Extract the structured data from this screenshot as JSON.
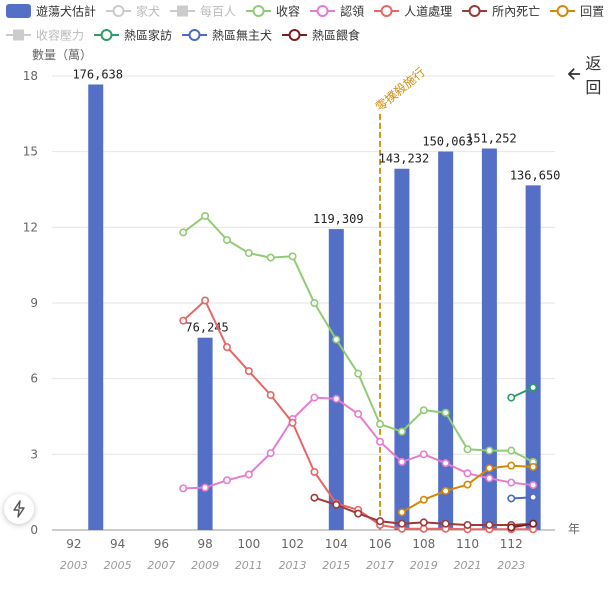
{
  "back_button": {
    "label": "返回",
    "icon": "arrow-left-icon"
  },
  "fab": {
    "icon": "lightning-icon"
  },
  "chart_data": {
    "type": "bar+line",
    "ylabel": "數量（萬）",
    "xlabel": "年",
    "ylim": [
      0,
      18
    ],
    "yticks": [
      0,
      3,
      6,
      9,
      12,
      15,
      18
    ],
    "xlim": [
      91,
      114
    ],
    "xticks": [
      {
        "x": 92,
        "label": "92",
        "sub": "2003"
      },
      {
        "x": 94,
        "label": "94",
        "sub": "2005"
      },
      {
        "x": 96,
        "label": "96",
        "sub": "2007"
      },
      {
        "x": 98,
        "label": "98",
        "sub": "2009"
      },
      {
        "x": 100,
        "label": "100",
        "sub": "2011"
      },
      {
        "x": 102,
        "label": "102",
        "sub": "2013"
      },
      {
        "x": 104,
        "label": "104",
        "sub": "2015"
      },
      {
        "x": 106,
        "label": "106",
        "sub": "2017"
      },
      {
        "x": 108,
        "label": "108",
        "sub": "2019"
      },
      {
        "x": 110,
        "label": "110",
        "sub": "2021"
      },
      {
        "x": 112,
        "label": "112",
        "sub": "2023"
      }
    ],
    "markline": {
      "x": 106,
      "label": "零撲殺施行",
      "color": "#d48806"
    },
    "bars": {
      "name": "遊蕩犬估計",
      "color": "#5470c6",
      "points": [
        {
          "x": 93,
          "y": 17.6638,
          "label": "176,638"
        },
        {
          "x": 98,
          "y": 7.6245,
          "label": "76,245"
        },
        {
          "x": 104,
          "y": 11.9309,
          "label": "119,309"
        },
        {
          "x": 107,
          "y": 14.3232,
          "label": "143,232"
        },
        {
          "x": 109,
          "y": 15.0063,
          "label": "150,063"
        },
        {
          "x": 111,
          "y": 15.1252,
          "label": "151,252"
        },
        {
          "x": 113,
          "y": 13.665,
          "label": "136,650"
        }
      ]
    },
    "legend": [
      {
        "name": "遊蕩犬估計",
        "color": "#5470c6",
        "style": "bar",
        "active": true
      },
      {
        "name": "家犬",
        "color": "#cccccc",
        "style": "line",
        "active": false
      },
      {
        "name": "每百人",
        "color": "#cccccc",
        "style": "line-square",
        "active": false
      },
      {
        "name": "收容",
        "color": "#91cc75",
        "style": "line",
        "active": true
      },
      {
        "name": "認領",
        "color": "#e87ccf",
        "style": "line",
        "active": true
      },
      {
        "name": "人道處理",
        "color": "#e86666",
        "style": "line",
        "active": true
      },
      {
        "name": "所內死亡",
        "color": "#9c3a3a",
        "style": "line",
        "active": true
      },
      {
        "name": "回置",
        "color": "#d48806",
        "style": "line",
        "active": true
      },
      {
        "name": "收容壓力",
        "color": "#cccccc",
        "style": "line-square",
        "active": false
      },
      {
        "name": "熱區家訪",
        "color": "#2e9c6a",
        "style": "line",
        "active": true
      },
      {
        "name": "熱區無主犬",
        "color": "#4a6bc8",
        "style": "line",
        "active": true
      },
      {
        "name": "熱區餵食",
        "color": "#7a2020",
        "style": "line",
        "active": true
      }
    ],
    "series": [
      {
        "name": "收容",
        "color": "#91cc75",
        "points": [
          [
            97,
            11.8
          ],
          [
            98,
            12.45
          ],
          [
            99,
            11.5
          ],
          [
            100,
            10.98
          ],
          [
            101,
            10.8
          ],
          [
            102,
            10.85
          ],
          [
            103,
            9.0
          ],
          [
            104,
            7.55
          ],
          [
            105,
            6.2
          ],
          [
            106,
            4.2
          ],
          [
            107,
            3.9
          ],
          [
            108,
            4.75
          ],
          [
            109,
            4.65
          ],
          [
            110,
            3.2
          ],
          [
            111,
            3.15
          ],
          [
            112,
            3.15
          ],
          [
            113,
            2.7
          ]
        ]
      },
      {
        "name": "認領",
        "color": "#e87ccf",
        "points": [
          [
            97,
            1.65
          ],
          [
            98,
            1.68
          ],
          [
            99,
            1.97
          ],
          [
            100,
            2.2
          ],
          [
            101,
            3.05
          ],
          [
            102,
            4.4
          ],
          [
            103,
            5.25
          ],
          [
            104,
            5.2
          ],
          [
            105,
            4.6
          ],
          [
            106,
            3.5
          ],
          [
            107,
            2.7
          ],
          [
            108,
            3.0
          ],
          [
            109,
            2.65
          ],
          [
            110,
            2.25
          ],
          [
            111,
            2.05
          ],
          [
            112,
            1.88
          ],
          [
            113,
            1.78
          ]
        ]
      },
      {
        "name": "人道處理",
        "color": "#e86666",
        "points": [
          [
            97,
            8.3
          ],
          [
            98,
            9.1
          ],
          [
            99,
            7.25
          ],
          [
            100,
            6.3
          ],
          [
            101,
            5.35
          ],
          [
            102,
            4.25
          ],
          [
            103,
            2.3
          ],
          [
            104,
            1.05
          ],
          [
            105,
            0.8
          ],
          [
            106,
            0.2
          ],
          [
            107,
            0.05
          ],
          [
            108,
            0.05
          ],
          [
            109,
            0.05
          ],
          [
            110,
            0.03
          ],
          [
            111,
            0.03
          ],
          [
            112,
            0.03
          ],
          [
            113,
            0.03
          ]
        ]
      },
      {
        "name": "所內死亡",
        "color": "#9c3a3a",
        "points": [
          [
            103,
            1.28
          ],
          [
            104,
            1.0
          ],
          [
            105,
            0.65
          ],
          [
            106,
            0.35
          ],
          [
            107,
            0.25
          ],
          [
            108,
            0.3
          ],
          [
            109,
            0.25
          ],
          [
            110,
            0.2
          ],
          [
            111,
            0.2
          ],
          [
            112,
            0.2
          ],
          [
            113,
            0.25
          ]
        ]
      },
      {
        "name": "回置",
        "color": "#d48806",
        "points": [
          [
            107,
            0.7
          ],
          [
            108,
            1.2
          ],
          [
            109,
            1.55
          ],
          [
            110,
            1.8
          ],
          [
            111,
            2.45
          ],
          [
            112,
            2.55
          ],
          [
            113,
            2.5
          ]
        ]
      },
      {
        "name": "熱區家訪",
        "color": "#2e9c6a",
        "points": [
          [
            112,
            5.25
          ],
          [
            113,
            5.65
          ]
        ]
      },
      {
        "name": "熱區無主犬",
        "color": "#4a6bc8",
        "points": [
          [
            112,
            1.25
          ],
          [
            113,
            1.3
          ]
        ]
      },
      {
        "name": "熱區餵食",
        "color": "#7a2020",
        "points": [
          [
            112,
            0.1
          ],
          [
            113,
            0.25
          ]
        ]
      }
    ]
  }
}
